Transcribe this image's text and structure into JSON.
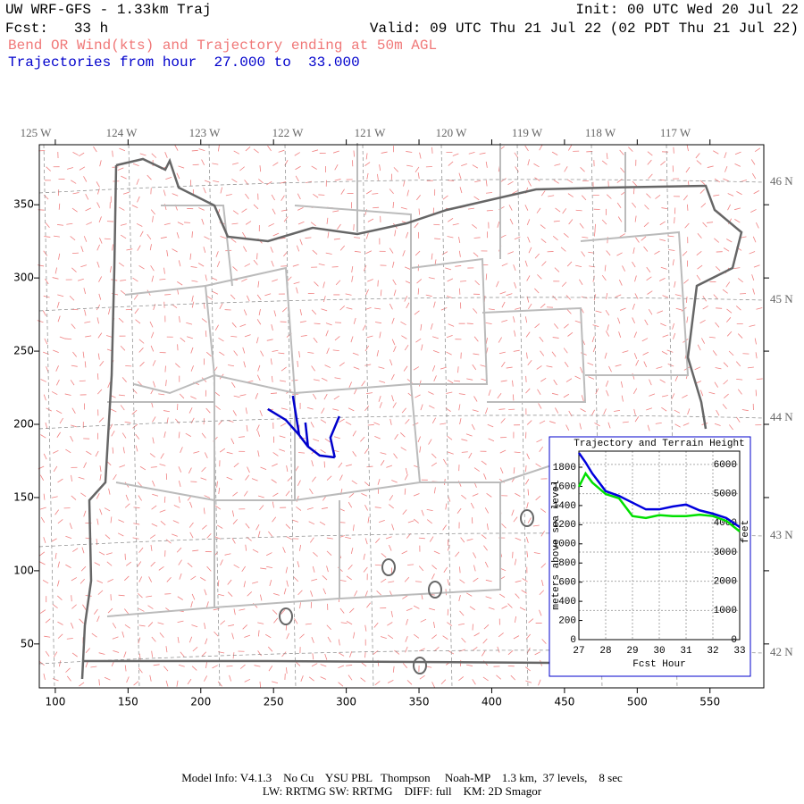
{
  "header": {
    "title": "UW WRF-GFS - 1.33km Traj",
    "init": "Init: 00 UTC Wed 20 Jul 22",
    "fcst": "Fcst:   33 h",
    "valid": "Valid: 09 UTC Thu 21 Jul 22 (02 PDT Thu 21 Jul 22)",
    "field": "Bend OR Wind(kts) and Trajectory ending at 50m AGL",
    "traj_hours": "Trajectories from hour  27.000 to  33.000"
  },
  "map": {
    "type": "trajectory-map",
    "xlim": [
      89,
      587
    ],
    "ylim": [
      20,
      391
    ],
    "xticks": [
      100,
      150,
      200,
      250,
      300,
      350,
      400,
      450,
      500,
      550
    ],
    "yticks": [
      50,
      100,
      150,
      200,
      250,
      300,
      350
    ],
    "lon_labels": [
      "125 W",
      "124 W",
      "123 W",
      "122 W",
      "121 W",
      "120 W",
      "119 W",
      "118 W",
      "117 W"
    ],
    "lat_labels": [
      "46 N",
      "45 N",
      "44 N",
      "43 N",
      "42 N"
    ],
    "trajectories": [
      {
        "color": "#0000cc",
        "x": [
          246.1,
          258.4,
          267.6,
          273.7,
          281.7,
          292.1
        ],
        "y": [
          210.4,
          203,
          192.7,
          184.8,
          178.7,
          177.4
        ]
      },
      {
        "color": "#0000cc",
        "x": [
          263.3,
          267.6
        ],
        "y": [
          219.5,
          192.7
        ]
      },
      {
        "color": "#0000cc",
        "x": [
          271.9,
          273.7
        ],
        "y": [
          201.2,
          184.8
        ]
      },
      {
        "color": "#0000cc",
        "x": [
          295.2,
          289.1,
          292.1
        ],
        "y": [
          205.5,
          190.9,
          177.4
        ]
      }
    ]
  },
  "inset": {
    "type": "line",
    "title": "Trajectory and Terrain Height",
    "y_label": "meters above sea level",
    "y2_label": "feet",
    "x_label": "Fcst Hour",
    "x": [
      27,
      27.25,
      27.5,
      28,
      28.5,
      29,
      29.5,
      30,
      30.5,
      31,
      31.5,
      32,
      32.5,
      33
    ],
    "xlim": [
      27,
      33
    ],
    "xticks": [
      27,
      28,
      29,
      30,
      31,
      32,
      33
    ],
    "ylim": [
      0,
      1968
    ],
    "yticks": [
      0,
      200,
      400,
      600,
      800,
      1000,
      1200,
      1400,
      1600,
      1800
    ],
    "y2lim": [
      0,
      6457
    ],
    "y2ticks": [
      0,
      1000,
      2000,
      3000,
      4000,
      5000,
      6000
    ],
    "series": [
      {
        "color": "#0000dd",
        "values": [
          1950,
          1850,
          1735,
          1550,
          1500,
          1430,
          1360,
          1360,
          1390,
          1410,
          1350,
          1315,
          1270,
          1175
        ]
      },
      {
        "color": "#00e000",
        "values": [
          1595,
          1735,
          1640,
          1520,
          1475,
          1290,
          1270,
          1300,
          1290,
          1290,
          1305,
          1290,
          1240,
          1130
        ]
      }
    ]
  },
  "footer": {
    "line1": "Model Info: V4.1.3    No Cu    YSU PBL   Thompson     Noah-MP    1.3 km,  37 levels,    8 sec",
    "line2": "LW: RRTMG SW: RRTMG    DIFF: full    KM: 2D Smagor"
  }
}
